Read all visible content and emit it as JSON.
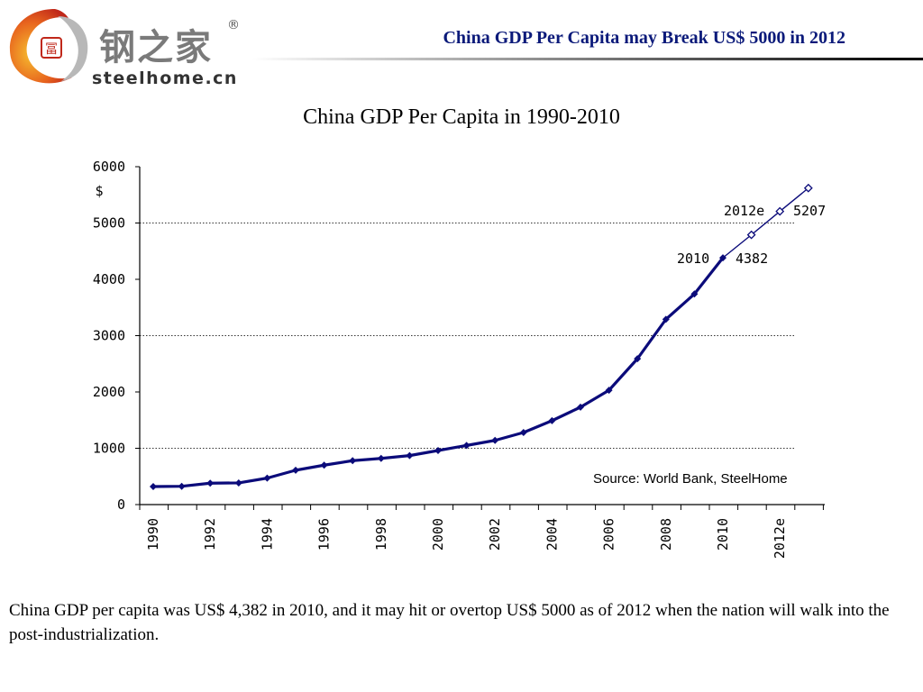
{
  "header": {
    "logo_cn": "钢之家",
    "logo_reg": "®",
    "logo_en": "steelhome.cn",
    "title": "China GDP Per Capita may Break US$ 5000 in 2012"
  },
  "colors": {
    "line": "#0b0b7a",
    "title": "#0b1a7a",
    "logo_red": "#d43a1b",
    "logo_orange": "#f0a020"
  },
  "chart_data": {
    "type": "line",
    "title": "China GDP Per Capita in 1990-2010",
    "ylabel": "$",
    "ylim": [
      0,
      6000
    ],
    "yticks": [
      0,
      1000,
      2000,
      3000,
      4000,
      5000,
      6000
    ],
    "grid": "dotted horizontal at 1000, 3000, 5000",
    "x_tick_labels": [
      "1990",
      "1992",
      "1994",
      "1996",
      "1998",
      "2000",
      "2002",
      "2004",
      "2006",
      "2008",
      "2010",
      "2012e"
    ],
    "series": [
      {
        "x": [
          1990,
          1991,
          1992,
          1993,
          1994,
          1995,
          1996,
          1997,
          1998,
          1999,
          2000,
          2001,
          2002,
          2003,
          2004,
          2005,
          2006,
          2007,
          2008,
          2009,
          2010
        ],
        "values": [
          320,
          325,
          380,
          385,
          470,
          610,
          700,
          780,
          820,
          870,
          960,
          1050,
          1140,
          1280,
          1490,
          1730,
          2030,
          2590,
          3290,
          3740,
          4382
        ],
        "style": "solid thick, filled diamonds"
      },
      {
        "x": [
          2010,
          2011,
          2012,
          2013
        ],
        "values": [
          4382,
          4790,
          5207,
          5620
        ],
        "style": "thin, hollow diamonds (estimate)"
      }
    ],
    "annotations": [
      {
        "text": "2010",
        "value": "4382"
      },
      {
        "text": "2012e",
        "value": "5207"
      }
    ],
    "source": "Source: World Bank, SteelHome"
  },
  "body_text": "China GDP per capita was US$ 4,382 in 2010, and it may hit or overtop US$ 5000 as of 2012 when the nation will walk into the post-industrialization."
}
